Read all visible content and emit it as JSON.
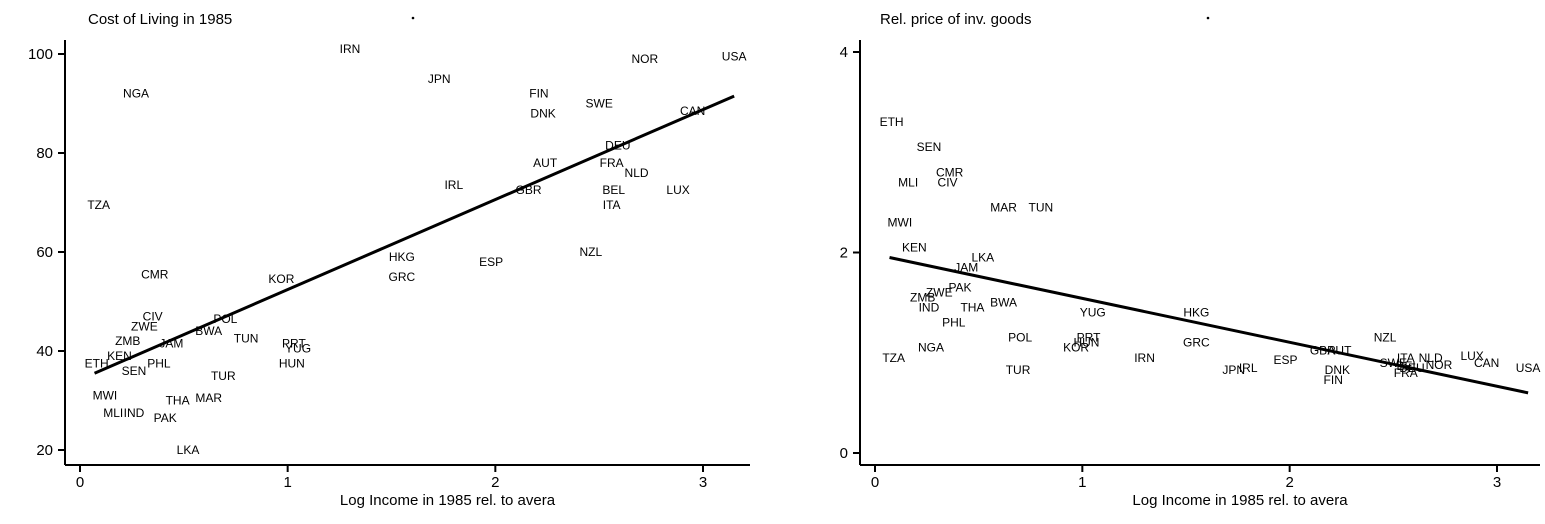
{
  "charts": [
    {
      "type": "scatter",
      "title": "Cost of Living in 1985",
      "xlabel": "Log Income in 1985 rel. to avera",
      "ylabel": "",
      "xlim": [
        -0.08,
        3.2
      ],
      "ylim": [
        16,
        103
      ],
      "xticks": [
        "0",
        "1",
        "2",
        "3"
      ],
      "xtick_values": [
        0,
        1,
        2,
        3
      ],
      "yticks": [
        "20",
        "40",
        "60",
        "80",
        "100"
      ],
      "ytick_values": [
        20,
        40,
        60,
        80,
        100
      ],
      "fit_line": {
        "x": [
          0.07,
          3.15
        ],
        "y": [
          35.5,
          91.5
        ]
      },
      "points": [
        {
          "label": "IRN",
          "x": 1.3,
          "y": 101
        },
        {
          "label": "NOR",
          "x": 2.72,
          "y": 99
        },
        {
          "label": "USA",
          "x": 3.15,
          "y": 99.5
        },
        {
          "label": "JPN",
          "x": 1.73,
          "y": 95
        },
        {
          "label": "NGA",
          "x": 0.27,
          "y": 92
        },
        {
          "label": "FIN",
          "x": 2.21,
          "y": 92
        },
        {
          "label": "SWE",
          "x": 2.5,
          "y": 90
        },
        {
          "label": "DNK",
          "x": 2.23,
          "y": 88
        },
        {
          "label": "CAN",
          "x": 2.95,
          "y": 88.5
        },
        {
          "label": "DEU",
          "x": 2.59,
          "y": 81.5
        },
        {
          "label": "AUT",
          "x": 2.24,
          "y": 78
        },
        {
          "label": "FRA",
          "x": 2.56,
          "y": 78
        },
        {
          "label": "NLD",
          "x": 2.68,
          "y": 76
        },
        {
          "label": "IRL",
          "x": 1.8,
          "y": 73.5
        },
        {
          "label": "GBR",
          "x": 2.16,
          "y": 72.5
        },
        {
          "label": "BEL",
          "x": 2.57,
          "y": 72.5
        },
        {
          "label": "LUX",
          "x": 2.88,
          "y": 72.5
        },
        {
          "label": "ITA",
          "x": 2.56,
          "y": 69.5
        },
        {
          "label": "TZA",
          "x": 0.09,
          "y": 69.5
        },
        {
          "label": "NZL",
          "x": 2.46,
          "y": 60
        },
        {
          "label": "HKG",
          "x": 1.55,
          "y": 59
        },
        {
          "label": "ESP",
          "x": 1.98,
          "y": 58
        },
        {
          "label": "CMR",
          "x": 0.36,
          "y": 55.5
        },
        {
          "label": "KOR",
          "x": 0.97,
          "y": 54.5
        },
        {
          "label": "GRC",
          "x": 1.55,
          "y": 55
        },
        {
          "label": "CIV",
          "x": 0.35,
          "y": 47
        },
        {
          "label": "POL",
          "x": 0.7,
          "y": 46.5
        },
        {
          "label": "ZWE",
          "x": 0.31,
          "y": 45
        },
        {
          "label": "BWA",
          "x": 0.62,
          "y": 44
        },
        {
          "label": "TUN",
          "x": 0.8,
          "y": 42.5
        },
        {
          "label": "ZMB",
          "x": 0.23,
          "y": 42
        },
        {
          "label": "JAM",
          "x": 0.44,
          "y": 41.5
        },
        {
          "label": "PRT",
          "x": 1.03,
          "y": 41.5
        },
        {
          "label": "YUG",
          "x": 1.05,
          "y": 40.5
        },
        {
          "label": "KEN",
          "x": 0.19,
          "y": 39
        },
        {
          "label": "ETH",
          "x": 0.08,
          "y": 37.5
        },
        {
          "label": "PHL",
          "x": 0.38,
          "y": 37.5
        },
        {
          "label": "HUN",
          "x": 1.02,
          "y": 37.5
        },
        {
          "label": "SEN",
          "x": 0.26,
          "y": 36
        },
        {
          "label": "TUR",
          "x": 0.69,
          "y": 35
        },
        {
          "label": "MWI",
          "x": 0.12,
          "y": 31
        },
        {
          "label": "THA",
          "x": 0.47,
          "y": 30
        },
        {
          "label": "MAR",
          "x": 0.62,
          "y": 30.5
        },
        {
          "label": "MLI",
          "x": 0.16,
          "y": 27.5
        },
        {
          "label": "IND",
          "x": 0.26,
          "y": 27.5
        },
        {
          "label": "PAK",
          "x": 0.41,
          "y": 26.5
        },
        {
          "label": "LKA",
          "x": 0.52,
          "y": 20
        }
      ]
    },
    {
      "type": "scatter",
      "title": "Rel. price of inv. goods",
      "xlabel": "Log Income in 1985 rel. to avera",
      "ylabel": "",
      "xlim": [
        -0.08,
        3.2
      ],
      "ylim": [
        -0.1,
        4.15
      ],
      "xticks": [
        "0",
        "1",
        "2",
        "3"
      ],
      "xtick_values": [
        0,
        1,
        2,
        3
      ],
      "yticks": [
        "0",
        "2",
        "4"
      ],
      "ytick_values": [
        0,
        2,
        4
      ],
      "fit_line": {
        "x": [
          0.07,
          3.15
        ],
        "y": [
          1.95,
          0.6
        ]
      },
      "points": [
        {
          "label": "ETH",
          "x": 0.08,
          "y": 3.3
        },
        {
          "label": "SEN",
          "x": 0.26,
          "y": 3.05
        },
        {
          "label": "CMR",
          "x": 0.36,
          "y": 2.8
        },
        {
          "label": "MLI",
          "x": 0.16,
          "y": 2.7
        },
        {
          "label": "CIV",
          "x": 0.35,
          "y": 2.7
        },
        {
          "label": "MAR",
          "x": 0.62,
          "y": 2.45
        },
        {
          "label": "TUN",
          "x": 0.8,
          "y": 2.45
        },
        {
          "label": "MWI",
          "x": 0.12,
          "y": 2.3
        },
        {
          "label": "KEN",
          "x": 0.19,
          "y": 2.05
        },
        {
          "label": "LKA",
          "x": 0.52,
          "y": 1.95
        },
        {
          "label": "JAM",
          "x": 0.44,
          "y": 1.85
        },
        {
          "label": "PAK",
          "x": 0.41,
          "y": 1.65
        },
        {
          "label": "ZMB",
          "x": 0.23,
          "y": 1.55
        },
        {
          "label": "ZWE",
          "x": 0.31,
          "y": 1.6
        },
        {
          "label": "BWA",
          "x": 0.62,
          "y": 1.5
        },
        {
          "label": "THA",
          "x": 0.47,
          "y": 1.45
        },
        {
          "label": "IND",
          "x": 0.26,
          "y": 1.45
        },
        {
          "label": "PHL",
          "x": 0.38,
          "y": 1.3
        },
        {
          "label": "YUG",
          "x": 1.05,
          "y": 1.4
        },
        {
          "label": "HKG",
          "x": 1.55,
          "y": 1.4
        },
        {
          "label": "POL",
          "x": 0.7,
          "y": 1.15
        },
        {
          "label": "PRT",
          "x": 1.03,
          "y": 1.15
        },
        {
          "label": "HUN",
          "x": 1.02,
          "y": 1.1
        },
        {
          "label": "KOR",
          "x": 0.97,
          "y": 1.05
        },
        {
          "label": "GRC",
          "x": 1.55,
          "y": 1.1
        },
        {
          "label": "NZL",
          "x": 2.46,
          "y": 1.15
        },
        {
          "label": "NGA",
          "x": 0.27,
          "y": 1.05
        },
        {
          "label": "GBR",
          "x": 2.16,
          "y": 1.02
        },
        {
          "label": "AUT",
          "x": 2.24,
          "y": 1.02
        },
        {
          "label": "TZA",
          "x": 0.09,
          "y": 0.95
        },
        {
          "label": "IRN",
          "x": 1.3,
          "y": 0.95
        },
        {
          "label": "ESP",
          "x": 1.98,
          "y": 0.93
        },
        {
          "label": "ITA",
          "x": 2.56,
          "y": 0.95
        },
        {
          "label": "NLD",
          "x": 2.68,
          "y": 0.95
        },
        {
          "label": "LUX",
          "x": 2.88,
          "y": 0.97
        },
        {
          "label": "SWE",
          "x": 2.5,
          "y": 0.9
        },
        {
          "label": "CAN",
          "x": 2.95,
          "y": 0.9
        },
        {
          "label": "NOR",
          "x": 2.72,
          "y": 0.88
        },
        {
          "label": "BEL",
          "x": 2.57,
          "y": 0.87
        },
        {
          "label": "DEU",
          "x": 2.59,
          "y": 0.85
        },
        {
          "label": "IRL",
          "x": 1.8,
          "y": 0.85
        },
        {
          "label": "USA",
          "x": 3.15,
          "y": 0.85
        },
        {
          "label": "TUR",
          "x": 0.69,
          "y": 0.83
        },
        {
          "label": "JPN",
          "x": 1.73,
          "y": 0.83
        },
        {
          "label": "DNK",
          "x": 2.23,
          "y": 0.83
        },
        {
          "label": "FRA",
          "x": 2.56,
          "y": 0.8
        },
        {
          "label": "FIN",
          "x": 2.21,
          "y": 0.73
        }
      ]
    }
  ]
}
